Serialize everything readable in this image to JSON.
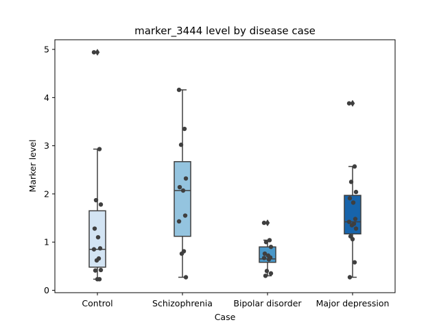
{
  "chart_data": {
    "type": "box",
    "title": "marker_3444 level by disease case",
    "xlabel": "Case",
    "ylabel": "Marker level",
    "ylim": [
      -0.05,
      5.2
    ],
    "yticks": [
      0,
      1,
      2,
      3,
      4,
      5
    ],
    "categories": [
      "Control",
      "Schizophrenia",
      "Bipolar disorder",
      "Major depression"
    ],
    "colors": [
      "#d3e4f3",
      "#94c4df",
      "#4a98c9",
      "#1764ab"
    ],
    "grid": false,
    "boxes": [
      {
        "category": "Control",
        "whisker_low": 0.23,
        "q1": 0.48,
        "median": 0.85,
        "q3": 1.65,
        "whisker_high": 2.93,
        "outliers": [
          4.94
        ]
      },
      {
        "category": "Schizophrenia",
        "whisker_low": 0.27,
        "q1": 1.12,
        "median": 2.07,
        "q3": 2.67,
        "whisker_high": 4.16,
        "outliers": []
      },
      {
        "category": "Bipolar disorder",
        "whisker_low": 0.3,
        "q1": 0.58,
        "median": 0.65,
        "q3": 0.9,
        "whisker_high": 1.04,
        "outliers": [
          1.4
        ]
      },
      {
        "category": "Major depression",
        "whisker_low": 0.27,
        "q1": 1.17,
        "median": 1.42,
        "q3": 1.97,
        "whisker_high": 2.57,
        "outliers": [
          3.88
        ]
      }
    ],
    "points": [
      {
        "category": "Control",
        "values": [
          4.94,
          2.93,
          1.87,
          1.78,
          1.28,
          1.1,
          0.87,
          0.85,
          0.66,
          0.62,
          0.42,
          0.41,
          0.23,
          0.23
        ]
      },
      {
        "category": "Schizophrenia",
        "values": [
          4.16,
          3.35,
          3.02,
          2.32,
          2.14,
          2.07,
          1.55,
          1.43,
          0.81,
          0.76,
          0.27
        ]
      },
      {
        "category": "Bipolar disorder",
        "values": [
          1.4,
          1.04,
          1.0,
          0.9,
          0.76,
          0.72,
          0.68,
          0.67,
          0.64,
          0.4,
          0.35,
          0.3
        ]
      },
      {
        "category": "Major depression",
        "values": [
          3.88,
          2.57,
          2.25,
          2.04,
          1.91,
          1.82,
          1.48,
          1.42,
          1.38,
          1.35,
          1.28,
          1.12,
          1.06,
          0.58,
          0.27
        ]
      }
    ]
  }
}
